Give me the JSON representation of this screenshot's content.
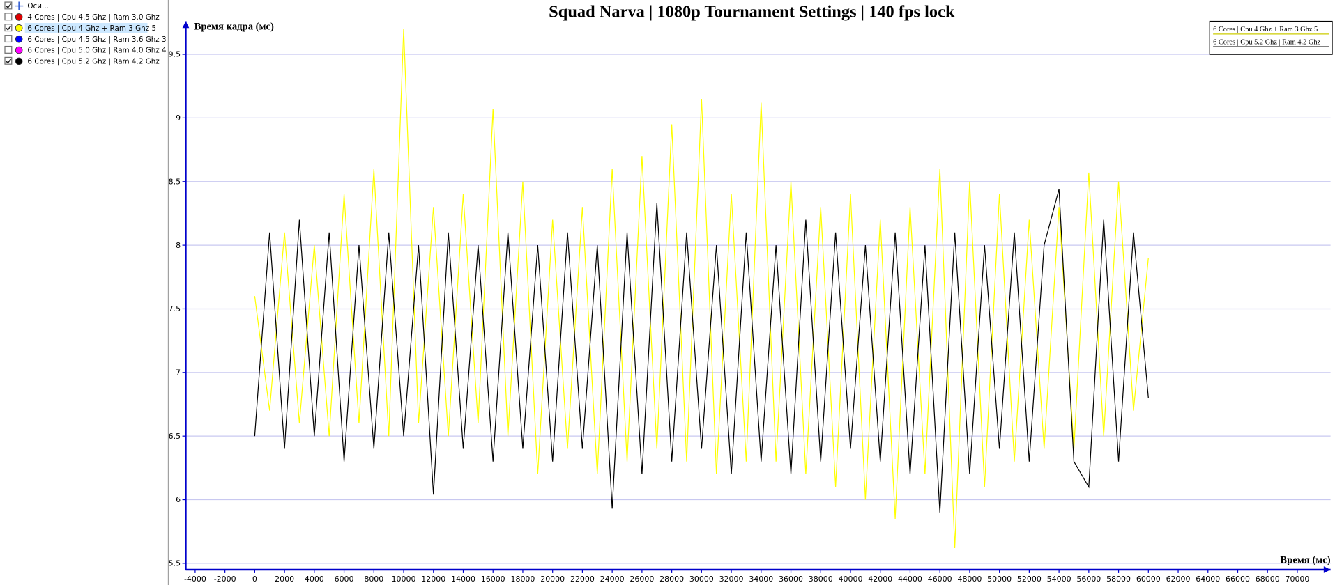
{
  "sidebar": {
    "items": [
      {
        "label": "Оси...",
        "checked": true
      },
      {
        "label": "4 Cores | Cpu 4.5 Ghz | Ram 3.0 Ghz",
        "color": "#e00000",
        "checked": false
      },
      {
        "label": "6 Cores | Cpu 4 Ghz + Ram 3 Ghz 5",
        "color": "#ffff00",
        "checked": true,
        "selected": true
      },
      {
        "label": "6 Cores | Cpu 4.5 Ghz | Ram 3.6 Ghz 3",
        "color": "#0000ff",
        "checked": false
      },
      {
        "label": "6 Cores | Cpu 5.0 Ghz | Ram 4.0 Ghz 4",
        "color": "#ff00ff",
        "checked": false
      },
      {
        "label": "6 Cores | Cpu 5.2 Ghz | Ram 4.2 Ghz",
        "color": "#000000",
        "checked": true
      }
    ]
  },
  "chart_data": {
    "type": "line",
    "title": "Squad Narva | 1080p Tournament Settings | 140 fps lock",
    "y_label": "Время кадра (мс)",
    "x_label": "Время (мс)",
    "x": [
      0,
      1000,
      2000,
      3000,
      4000,
      5000,
      6000,
      7000,
      8000,
      9000,
      10000,
      11000,
      12000,
      13000,
      14000,
      15000,
      16000,
      17000,
      18000,
      19000,
      20000,
      21000,
      22000,
      23000,
      24000,
      25000,
      26000,
      27000,
      28000,
      29000,
      30000,
      31000,
      32000,
      33000,
      34000,
      35000,
      36000,
      37000,
      38000,
      39000,
      40000,
      41000,
      42000,
      43000,
      44000,
      45000,
      46000,
      47000,
      48000,
      49000,
      50000,
      51000,
      52000,
      53000,
      54000,
      55000,
      56000,
      57000,
      58000,
      59000,
      60000
    ],
    "series": [
      {
        "name": "6 Cores | Cpu 4 Ghz + Ram 3 Ghz 5",
        "color": "#ffff00",
        "values": [
          7.6,
          6.7,
          8.1,
          6.6,
          8.0,
          6.5,
          8.4,
          6.6,
          8.6,
          6.5,
          9.7,
          6.6,
          8.3,
          6.5,
          8.4,
          6.6,
          9.07,
          6.5,
          8.5,
          6.2,
          8.2,
          6.4,
          8.3,
          6.2,
          8.6,
          6.3,
          8.7,
          6.4,
          8.95,
          6.3,
          9.15,
          6.2,
          8.4,
          6.3,
          9.12,
          6.3,
          8.5,
          6.2,
          8.3,
          6.1,
          8.4,
          6.0,
          8.2,
          5.85,
          8.3,
          6.2,
          8.6,
          5.62,
          8.5,
          6.1,
          8.4,
          6.3,
          8.2,
          6.4,
          8.3,
          6.4,
          8.57,
          6.5,
          8.5,
          6.7,
          7.9
        ]
      },
      {
        "name": "6 Cores | Cpu 5.2 Ghz | Ram 4.2 Ghz",
        "color": "#000000",
        "values": [
          6.5,
          8.1,
          6.4,
          8.2,
          6.5,
          8.1,
          6.3,
          8.0,
          6.4,
          8.1,
          6.5,
          8.0,
          6.04,
          8.1,
          6.4,
          8.0,
          6.3,
          8.1,
          6.4,
          8.0,
          6.3,
          8.1,
          6.4,
          8.0,
          5.93,
          8.1,
          6.2,
          8.33,
          6.3,
          8.1,
          6.4,
          8.0,
          6.2,
          8.1,
          6.3,
          8.0,
          6.2,
          8.2,
          6.3,
          8.1,
          6.4,
          8.0,
          6.3,
          8.1,
          6.2,
          8.0,
          5.9,
          8.1,
          6.2,
          8.0,
          6.4,
          8.1,
          6.3,
          8.0,
          8.44,
          6.3,
          6.1,
          8.2,
          6.3,
          8.1,
          6.8
        ]
      }
    ],
    "xlim": [
      -4630,
      72230
    ],
    "ylim": [
      5.45,
      9.76
    ],
    "xticks": [
      -4000,
      -2000,
      0,
      2000,
      4000,
      6000,
      8000,
      10000,
      12000,
      14000,
      16000,
      18000,
      20000,
      22000,
      24000,
      26000,
      28000,
      30000,
      32000,
      34000,
      36000,
      38000,
      40000,
      42000,
      44000,
      46000,
      48000,
      50000,
      52000,
      54000,
      56000,
      58000,
      60000,
      62000,
      64000,
      66000,
      68000,
      70000
    ],
    "yticks": [
      5.5,
      6,
      6.5,
      7,
      7.5,
      8,
      8.5,
      9,
      9.5
    ],
    "grid": true,
    "grid_color": "#c8c8f0",
    "axis_color": "#0000cc",
    "legend": "upper right"
  }
}
